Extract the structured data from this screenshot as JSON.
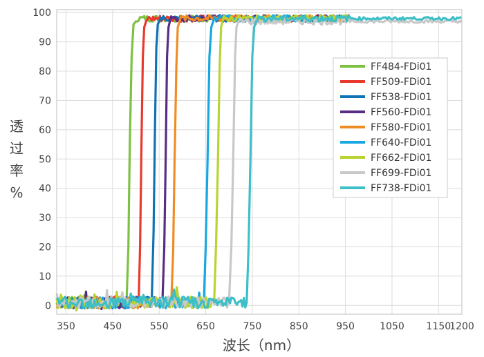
{
  "chart_data": {
    "type": "line",
    "title": "",
    "xlabel": "波长（nm）",
    "ylabel": "透过率%",
    "ylabel_chars": [
      "透",
      "过",
      "率",
      "%"
    ],
    "xlim": [
      330,
      1200
    ],
    "ylim": [
      -3,
      101
    ],
    "x_ticks": [
      350,
      450,
      550,
      650,
      750,
      850,
      950,
      1050,
      1150,
      1200
    ],
    "y_ticks": [
      0,
      10,
      20,
      30,
      40,
      50,
      60,
      70,
      80,
      90,
      100
    ],
    "grid": true,
    "legend_position": "right-center",
    "series": [
      {
        "name": "FF484-FDi01",
        "color": "#7dc142",
        "x": [
          330,
          480,
          484,
          487,
          491,
          495,
          500,
          960
        ],
        "y": [
          1,
          1,
          20,
          55,
          85,
          96,
          97,
          98
        ]
      },
      {
        "name": "FF509-FDi01",
        "color": "#e8392d",
        "x": [
          330,
          506,
          509,
          512,
          515,
          518,
          522,
          960
        ],
        "y": [
          1,
          1,
          20,
          55,
          85,
          95,
          97,
          98
        ]
      },
      {
        "name": "FF538-FDi01",
        "color": "#0f72b5",
        "x": [
          330,
          534,
          538,
          541,
          544,
          547,
          550,
          960
        ],
        "y": [
          1,
          1,
          25,
          60,
          88,
          96,
          97,
          98
        ]
      },
      {
        "name": "FF560-FDi01",
        "color": "#582d84",
        "x": [
          330,
          557,
          561,
          564,
          567,
          570,
          573,
          960
        ],
        "y": [
          1,
          1,
          20,
          50,
          85,
          95,
          97,
          98
        ]
      },
      {
        "name": "FF580-FDi01",
        "color": "#f08c25",
        "x": [
          330,
          576,
          580,
          583,
          587,
          590,
          594,
          960
        ],
        "y": [
          1,
          1,
          18,
          48,
          82,
          95,
          97,
          98
        ]
      },
      {
        "name": "FF640-FDi01",
        "color": "#18a7e0",
        "x": [
          330,
          646,
          650,
          654,
          658,
          662,
          666,
          960
        ],
        "y": [
          1,
          1,
          20,
          50,
          85,
          95,
          97,
          98
        ]
      },
      {
        "name": "FF662-FDi01",
        "color": "#b8d432",
        "x": [
          330,
          668,
          672,
          676,
          680,
          683,
          686,
          960
        ],
        "y": [
          1,
          1,
          20,
          48,
          82,
          95,
          97,
          98
        ]
      },
      {
        "name": "FF699-FDi01",
        "color": "#c8c8c8",
        "x": [
          330,
          700,
          705,
          709,
          713,
          716,
          720,
          1200
        ],
        "y": [
          1,
          1,
          20,
          50,
          85,
          95,
          97,
          97
        ]
      },
      {
        "name": "FF738-FDi01",
        "color": "#3dbfc7",
        "x": [
          330,
          738,
          742,
          746,
          750,
          754,
          758,
          1200
        ],
        "y": [
          1,
          1,
          20,
          50,
          85,
          95,
          97,
          98
        ]
      }
    ]
  }
}
